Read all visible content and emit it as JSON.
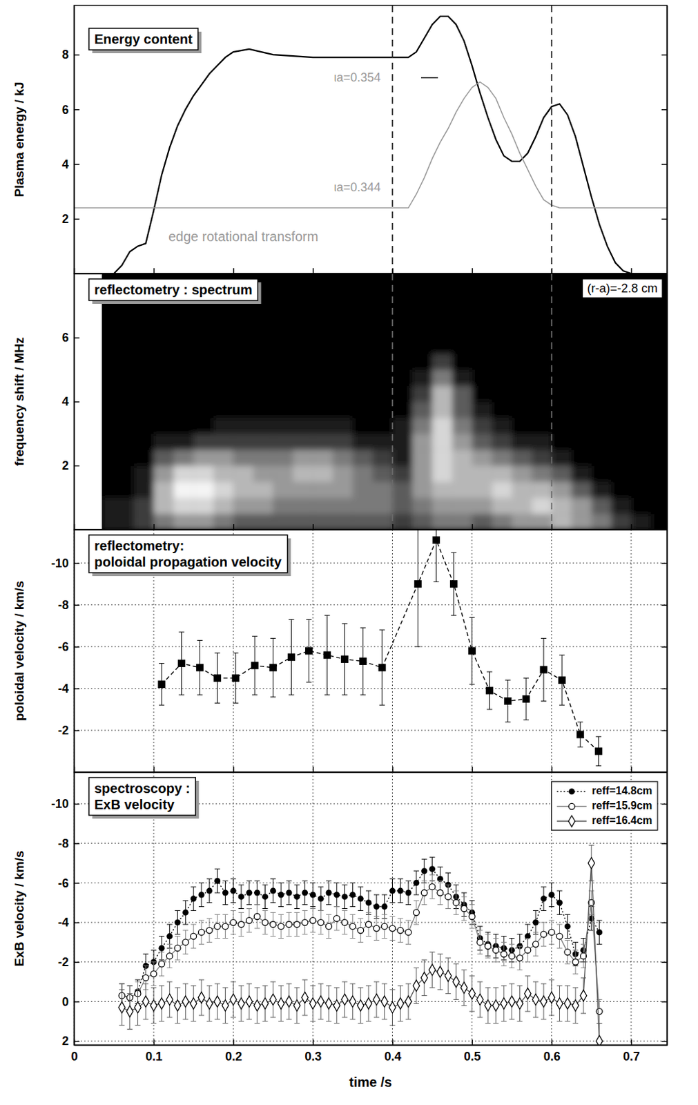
{
  "chart_data": [
    {
      "type": "line",
      "title": "Energy content",
      "y_label": "Plasma energy / kJ",
      "xlim": [
        0,
        0.745
      ],
      "xticks": [
        0,
        0.1,
        0.2,
        0.3,
        0.4,
        0.5,
        0.6,
        0.7
      ],
      "ylim": [
        0,
        9.8
      ],
      "yticks": [
        2,
        4,
        6,
        8
      ],
      "tick_labels": "y",
      "vlines": [
        0.4,
        0.6
      ],
      "annotations": [
        "ιa=0.354",
        "ιa=0.344"
      ],
      "series": [
        {
          "color": "#000000",
          "x": [
            0,
            0.05,
            0.06,
            0.07,
            0.08,
            0.09,
            0.1,
            0.11,
            0.12,
            0.13,
            0.14,
            0.15,
            0.16,
            0.17,
            0.18,
            0.19,
            0.2,
            0.22,
            0.25,
            0.3,
            0.35,
            0.4,
            0.42,
            0.43,
            0.44,
            0.45,
            0.46,
            0.47,
            0.48,
            0.49,
            0.5,
            0.51,
            0.52,
            0.53,
            0.54,
            0.55,
            0.56,
            0.57,
            0.58,
            0.59,
            0.6,
            0.61,
            0.62,
            0.63,
            0.64,
            0.65,
            0.66,
            0.67,
            0.68,
            0.69,
            0.7,
            0.745
          ],
          "values": [
            0,
            0,
            0.3,
            0.8,
            1.0,
            1.1,
            2.3,
            3.6,
            4.6,
            5.4,
            6.0,
            6.5,
            6.9,
            7.3,
            7.6,
            7.9,
            8.1,
            8.2,
            8.0,
            7.9,
            7.9,
            7.9,
            7.9,
            8.1,
            8.6,
            9.1,
            9.4,
            9.4,
            9.1,
            8.5,
            7.6,
            6.6,
            5.7,
            4.9,
            4.3,
            4.1,
            4.1,
            4.4,
            5.0,
            5.7,
            6.1,
            6.2,
            5.8,
            5.0,
            3.9,
            2.8,
            1.8,
            1.0,
            0.4,
            0.1,
            0,
            0
          ]
        },
        {
          "name": "edge rotational transform",
          "color": "#999999",
          "x": [
            0,
            0.42,
            0.43,
            0.44,
            0.45,
            0.46,
            0.47,
            0.48,
            0.49,
            0.5,
            0.51,
            0.52,
            0.53,
            0.54,
            0.55,
            0.56,
            0.57,
            0.58,
            0.59,
            0.6,
            0.61,
            0.745
          ],
          "values": [
            2.4,
            2.4,
            2.9,
            3.5,
            4.2,
            4.8,
            5.3,
            5.9,
            6.4,
            6.8,
            7.0,
            6.8,
            6.4,
            5.7,
            5.1,
            4.4,
            3.8,
            3.2,
            2.7,
            2.5,
            2.4,
            2.4
          ]
        }
      ]
    },
    {
      "type": "heatmap",
      "title": "reflectometry : spectrum",
      "y_label": "frequency shift / MHz",
      "xlim": [
        0,
        0.745
      ],
      "xticks": [
        0,
        0.1,
        0.2,
        0.3,
        0.4,
        0.5,
        0.6,
        0.7
      ],
      "ylim": [
        0,
        8
      ],
      "yticks": [
        2,
        4,
        6
      ],
      "tick_labels": "y",
      "vlines": [
        0.4,
        0.6
      ],
      "annotations": [
        "(r-a)=-2.8 cm"
      ],
      "x_bins": [
        0.035,
        0.075,
        0.1,
        0.125,
        0.15,
        0.175,
        0.2,
        0.225,
        0.25,
        0.275,
        0.3,
        0.325,
        0.35,
        0.375,
        0.4,
        0.425,
        0.45,
        0.475,
        0.5,
        0.525,
        0.55,
        0.575,
        0.6,
        0.625,
        0.65,
        0.675,
        0.7,
        0.725,
        0.745
      ],
      "y_bins": [
        0,
        0.5,
        1,
        1.5,
        2,
        2.5,
        3,
        3.5,
        4,
        4.5,
        5,
        5.5,
        8
      ],
      "z": [
        [
          1,
          2,
          4,
          5,
          5,
          4,
          3,
          3,
          3,
          3,
          3,
          3,
          3,
          3,
          2,
          3,
          4,
          4,
          3,
          4,
          5,
          5,
          6,
          5,
          4,
          2,
          1,
          0
        ],
        [
          1,
          2,
          6,
          7,
          7,
          6,
          5,
          5,
          4,
          4,
          4,
          4,
          4,
          4,
          3,
          4,
          5,
          5,
          5,
          6,
          6,
          7,
          6,
          5,
          3,
          1,
          0,
          0
        ],
        [
          0,
          1,
          6,
          8,
          8,
          7,
          6,
          6,
          5,
          5,
          5,
          5,
          4,
          4,
          3,
          5,
          6,
          6,
          6,
          7,
          6,
          6,
          5,
          3,
          1,
          0,
          0,
          0
        ],
        [
          0,
          1,
          5,
          7,
          7,
          6,
          6,
          5,
          5,
          6,
          6,
          5,
          4,
          3,
          2,
          5,
          7,
          6,
          6,
          6,
          5,
          4,
          3,
          1,
          0,
          0,
          0,
          0
        ],
        [
          0,
          0,
          3,
          4,
          5,
          5,
          4,
          4,
          4,
          5,
          5,
          4,
          3,
          2,
          1,
          5,
          7,
          6,
          5,
          4,
          3,
          2,
          1,
          0,
          0,
          0,
          0,
          0
        ],
        [
          0,
          0,
          1,
          1,
          2,
          2,
          2,
          2,
          2,
          2,
          2,
          2,
          1,
          1,
          1,
          5,
          7,
          5,
          3,
          2,
          1,
          1,
          0,
          0,
          0,
          0,
          0,
          0
        ],
        [
          0,
          0,
          0,
          0,
          0,
          1,
          1,
          1,
          1,
          1,
          1,
          1,
          0,
          0,
          1,
          4,
          7,
          4,
          2,
          1,
          0,
          0,
          0,
          0,
          0,
          0,
          0,
          0
        ],
        [
          0,
          0,
          0,
          0,
          0,
          0,
          0,
          0,
          0,
          0,
          0,
          0,
          0,
          0,
          0,
          3,
          6,
          3,
          1,
          0,
          0,
          0,
          0,
          0,
          0,
          0,
          0,
          0
        ],
        [
          0,
          0,
          0,
          0,
          0,
          0,
          0,
          0,
          0,
          0,
          0,
          0,
          0,
          0,
          0,
          2,
          6,
          3,
          0,
          0,
          0,
          0,
          0,
          0,
          0,
          0,
          0,
          0
        ],
        [
          0,
          0,
          0,
          0,
          0,
          0,
          0,
          0,
          0,
          0,
          0,
          0,
          0,
          0,
          0,
          1,
          4,
          1,
          0,
          0,
          0,
          0,
          0,
          0,
          0,
          0,
          0,
          0
        ],
        [
          0,
          0,
          0,
          0,
          0,
          0,
          0,
          0,
          0,
          0,
          0,
          0,
          0,
          0,
          0,
          0,
          2,
          0,
          0,
          0,
          0,
          0,
          0,
          0,
          0,
          0,
          0,
          0
        ],
        [
          0,
          0,
          0,
          0,
          0,
          0,
          0,
          0,
          0,
          0,
          0,
          0,
          0,
          0,
          0,
          0,
          0,
          0,
          0,
          0,
          0,
          0,
          0,
          0,
          0,
          0,
          0,
          0
        ]
      ]
    },
    {
      "type": "scatter",
      "title": "reflectometry:\npoloidal propagation velocity",
      "y_label": "poloidal velocity / km/s",
      "xlim": [
        0,
        0.745
      ],
      "xticks": [
        0,
        0.1,
        0.2,
        0.3,
        0.4,
        0.5,
        0.6,
        0.7
      ],
      "ylim": [
        0,
        -11.6
      ],
      "yticks": [
        -10,
        -8,
        -6,
        -4,
        -2
      ],
      "tick_labels": "y",
      "grid": true,
      "x": [
        0.11,
        0.135,
        0.158,
        0.18,
        0.203,
        0.227,
        0.25,
        0.273,
        0.295,
        0.318,
        0.34,
        0.363,
        0.387,
        0.432,
        0.455,
        0.477,
        0.5,
        0.522,
        0.545,
        0.568,
        0.59,
        0.613,
        0.636,
        0.659
      ],
      "series": [
        {
          "color": "#000000",
          "marker": "square",
          "line_style": "dashed",
          "values": [
            -4.2,
            -5.2,
            -5.0,
            -4.5,
            -4.5,
            -5.1,
            -5.0,
            -5.5,
            -5.8,
            -5.6,
            -5.4,
            -5.3,
            -5.0,
            -9.0,
            -11.1,
            -9.0,
            -5.8,
            -3.9,
            -3.4,
            -3.5,
            -4.9,
            -4.4,
            -1.8,
            -1.0
          ],
          "errors": [
            1.0,
            1.5,
            1.3,
            1.2,
            1.2,
            1.4,
            1.4,
            1.8,
            1.5,
            1.9,
            1.7,
            1.6,
            1.8,
            3.0,
            2.0,
            1.5,
            1.6,
            0.9,
            1.0,
            1.0,
            1.5,
            1.2,
            0.6,
            0.7
          ]
        }
      ]
    },
    {
      "type": "scatter",
      "title": "spectroscopy :\nExB velocity",
      "y_label": "ExB velocity / km/s",
      "x_label": "time /s",
      "xlim": [
        0,
        0.745
      ],
      "xticks": [
        0,
        0.1,
        0.2,
        0.3,
        0.4,
        0.5,
        0.6,
        0.7
      ],
      "ylim": [
        2.2,
        -11.6
      ],
      "yticks": [
        -10,
        -8,
        -6,
        -4,
        -2,
        0,
        2
      ],
      "grid": true,
      "legend": "top-right",
      "x": [
        0.06,
        0.07,
        0.08,
        0.09,
        0.1,
        0.11,
        0.12,
        0.13,
        0.14,
        0.15,
        0.16,
        0.17,
        0.18,
        0.19,
        0.2,
        0.21,
        0.22,
        0.23,
        0.24,
        0.25,
        0.26,
        0.27,
        0.28,
        0.29,
        0.3,
        0.31,
        0.32,
        0.33,
        0.34,
        0.35,
        0.36,
        0.37,
        0.38,
        0.39,
        0.4,
        0.41,
        0.42,
        0.43,
        0.44,
        0.45,
        0.46,
        0.47,
        0.48,
        0.49,
        0.5,
        0.51,
        0.52,
        0.53,
        0.54,
        0.55,
        0.56,
        0.57,
        0.58,
        0.59,
        0.6,
        0.61,
        0.62,
        0.63,
        0.64,
        0.65,
        0.66
      ],
      "series": [
        {
          "name": "reff=14.8cm",
          "color": "#000000",
          "marker": "circle",
          "line_style": "dotted",
          "values": [
            -0.3,
            -0.2,
            -0.5,
            -1.8,
            -2.0,
            -2.7,
            -3.3,
            -4.0,
            -4.5,
            -5.2,
            -5.4,
            -5.6,
            -6.1,
            -5.5,
            -5.6,
            -5.3,
            -5.5,
            -5.5,
            -5.3,
            -5.6,
            -5.4,
            -5.5,
            -5.3,
            -5.5,
            -5.4,
            -5.2,
            -5.5,
            -5.4,
            -5.3,
            -5.4,
            -5.2,
            -5.0,
            -4.8,
            -4.8,
            -5.6,
            -5.6,
            -5.5,
            -6.0,
            -6.6,
            -6.7,
            -6.2,
            -5.9,
            -5.3,
            -4.9,
            -4.5,
            -3.2,
            -2.9,
            -2.8,
            -2.7,
            -2.6,
            -2.8,
            -3.3,
            -4.0,
            -5.2,
            -5.4,
            -5.0,
            -3.8,
            -2.4,
            -2.6,
            -4.2,
            -3.5
          ],
          "errors": [
            0.6,
            0.6,
            0.6,
            0.6,
            0.6,
            0.6,
            0.6,
            0.6,
            0.6,
            0.6,
            0.6,
            0.6,
            0.6,
            0.6,
            0.6,
            0.6,
            0.6,
            0.6,
            0.6,
            0.6,
            0.6,
            0.6,
            0.6,
            0.6,
            0.6,
            0.6,
            0.6,
            0.6,
            0.6,
            0.6,
            0.6,
            0.6,
            0.6,
            0.6,
            0.6,
            0.6,
            0.6,
            0.6,
            0.6,
            0.6,
            0.6,
            0.6,
            0.6,
            0.6,
            0.6,
            0.6,
            0.6,
            0.6,
            0.6,
            0.6,
            0.6,
            0.6,
            0.6,
            0.6,
            0.6,
            0.6,
            0.6,
            0.6,
            0.6,
            0.6,
            0.6
          ]
        },
        {
          "name": "reff=15.9cm",
          "color": "#808080",
          "marker": "circle-open",
          "line_style": "solid",
          "values": [
            -0.3,
            -0.2,
            -0.4,
            -1.2,
            -1.4,
            -1.9,
            -2.3,
            -2.7,
            -3.0,
            -3.3,
            -3.5,
            -3.6,
            -3.8,
            -3.8,
            -4.0,
            -3.9,
            -4.1,
            -4.3,
            -4.0,
            -3.9,
            -3.8,
            -3.9,
            -3.9,
            -4.0,
            -4.1,
            -4.0,
            -3.8,
            -4.2,
            -4.0,
            -3.8,
            -3.6,
            -3.9,
            -3.7,
            -3.8,
            -3.7,
            -3.6,
            -3.5,
            -4.5,
            -5.5,
            -5.8,
            -5.5,
            -5.3,
            -5.0,
            -4.7,
            -4.3,
            -3.0,
            -2.8,
            -2.6,
            -2.4,
            -2.3,
            -2.2,
            -2.6,
            -2.9,
            -3.4,
            -3.5,
            -3.3,
            -2.5,
            -2.0,
            -2.3,
            -5.0,
            0.5
          ],
          "errors": [
            0.6,
            0.6,
            0.6,
            0.6,
            0.6,
            0.6,
            0.6,
            0.6,
            0.6,
            0.6,
            0.6,
            0.6,
            0.6,
            0.6,
            0.6,
            0.6,
            0.6,
            0.6,
            0.6,
            0.6,
            0.6,
            0.6,
            0.6,
            0.6,
            0.6,
            0.6,
            0.6,
            0.6,
            0.6,
            0.6,
            0.6,
            0.6,
            0.6,
            0.6,
            0.6,
            0.6,
            0.6,
            0.6,
            0.6,
            0.6,
            0.6,
            0.6,
            0.6,
            0.6,
            0.6,
            0.6,
            0.6,
            0.6,
            0.6,
            0.6,
            0.6,
            0.6,
            0.6,
            0.6,
            0.6,
            0.6,
            0.6,
            0.6,
            0.6,
            0.6,
            0.6
          ]
        },
        {
          "name": "reff=16.4cm",
          "color": "#555555",
          "marker": "diamond-open",
          "line_style": "solid",
          "values": [
            0.3,
            0.5,
            0.3,
            0.0,
            0.2,
            0.1,
            -0.1,
            0.2,
            0.0,
            0.1,
            -0.2,
            0.1,
            0.0,
            0.2,
            -0.1,
            0.1,
            0.0,
            0.2,
            0.1,
            -0.1,
            0.1,
            0.0,
            0.2,
            -0.2,
            0.1,
            0.0,
            0.1,
            0.2,
            -0.1,
            0.0,
            0.2,
            0.1,
            -0.1,
            0.0,
            0.3,
            0.1,
            0.0,
            -0.8,
            -1.2,
            -1.6,
            -1.5,
            -1.3,
            -1.0,
            -0.7,
            -0.4,
            -0.1,
            0.2,
            0.2,
            0.1,
            0.0,
            0.1,
            -0.4,
            -0.1,
            0.0,
            -0.2,
            0.1,
            0.1,
            0.2,
            -0.3,
            -7.0,
            2.0
          ],
          "errors": [
            0.9,
            0.9,
            0.9,
            0.9,
            0.9,
            0.9,
            0.9,
            0.9,
            0.9,
            0.9,
            0.9,
            0.9,
            0.9,
            0.9,
            0.9,
            0.9,
            0.9,
            0.9,
            0.9,
            0.9,
            0.9,
            0.9,
            0.9,
            0.9,
            0.9,
            0.9,
            0.9,
            0.9,
            0.9,
            0.9,
            0.9,
            0.9,
            0.9,
            0.9,
            0.9,
            0.9,
            0.9,
            0.9,
            0.9,
            0.9,
            0.9,
            0.9,
            0.9,
            0.9,
            0.9,
            0.9,
            0.9,
            0.9,
            0.9,
            0.9,
            0.9,
            0.9,
            0.9,
            0.9,
            0.9,
            0.9,
            0.9,
            0.9,
            0.9,
            0.9,
            0.9
          ]
        }
      ]
    }
  ]
}
